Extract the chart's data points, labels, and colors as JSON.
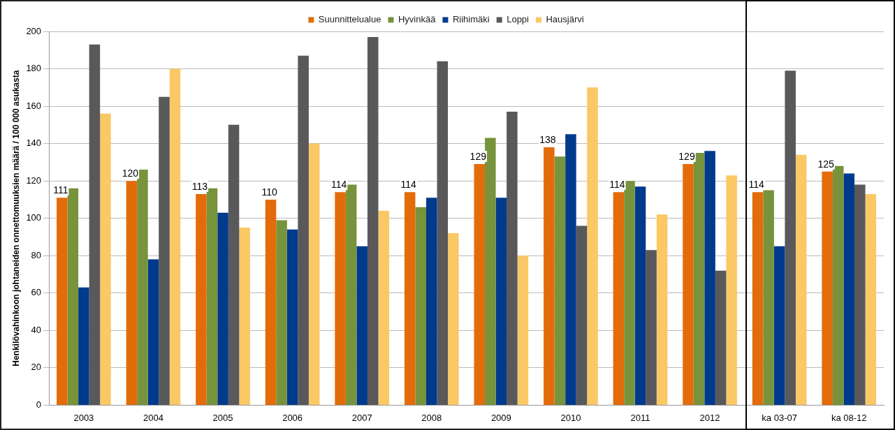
{
  "chart_data": {
    "type": "bar",
    "ylabel": "Henkilövahinkoon johtaneiden onnettomuuksien määrä / 100 000 asukasta",
    "categories": [
      "2003",
      "2004",
      "2005",
      "2006",
      "2007",
      "2008",
      "2009",
      "2010",
      "2011",
      "2012",
      "ka 03-07",
      "ka 08-12"
    ],
    "series": [
      {
        "name": "Suunnittelualue",
        "color": "#e36c0a",
        "values": [
          111,
          120,
          113,
          110,
          114,
          114,
          129,
          138,
          114,
          129,
          114,
          125
        ],
        "value_labels": [
          "111",
          "120",
          "113",
          "110",
          "114",
          "114",
          "129",
          "138",
          "114",
          "129",
          "114",
          "125"
        ]
      },
      {
        "name": "Hyvinkää",
        "color": "#77933c",
        "values": [
          116,
          126,
          116,
          99,
          118,
          106,
          143,
          133,
          120,
          135,
          115,
          128
        ]
      },
      {
        "name": "Riihimäki",
        "color": "#003a8c",
        "values": [
          63,
          78,
          103,
          94,
          85,
          111,
          111,
          145,
          117,
          136,
          85,
          124
        ]
      },
      {
        "name": "Loppi",
        "color": "#59585a",
        "values": [
          193,
          165,
          150,
          187,
          197,
          184,
          157,
          96,
          83,
          72,
          179,
          118
        ]
      },
      {
        "name": "Hausjärvi",
        "color": "#fac865",
        "values": [
          156,
          180,
          95,
          140,
          104,
          92,
          80,
          170,
          102,
          123,
          134,
          113
        ]
      }
    ],
    "ylim": [
      0,
      200
    ],
    "yticks": [
      0,
      20,
      40,
      60,
      80,
      100,
      120,
      140,
      160,
      180,
      200
    ],
    "grid": "y",
    "legend": "top"
  }
}
